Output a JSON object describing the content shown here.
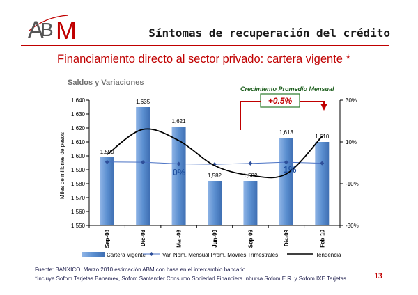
{
  "logo": {
    "text": "ABM"
  },
  "slide": {
    "title": "Síntomas de recuperación del crédito",
    "subtitle": "Financiamiento directo al sector privado: cartera vigente *",
    "page_number": "13"
  },
  "footnotes": [
    "Fuente:  BANXICO. Marzo 2010 estimación ABM con base en el intercambio bancario.",
    "*Incluye Sofom Tarjetas Banamex, Sofom Santander Consumo Sociedad Financiera Inbursa Sofom E.R. y Sofom IXE Tarjetas"
  ],
  "colors": {
    "accent": "#c00000",
    "bar": "#5b8fd0",
    "line": "#4a72c4",
    "trend": "#000000"
  },
  "chart_data": {
    "type": "bar",
    "heading": "Saldos y Variaciones",
    "categories": [
      "Sep-08",
      "Dic-08",
      "Mar-09",
      "Jun-09",
      "Sep-09",
      "Dic-09",
      "Feb-10"
    ],
    "ylabel": "Miles de millones de pesos",
    "ylim": [
      1550,
      1640
    ],
    "yticks": [
      "1,550",
      "1,560",
      "1,570",
      "1,580",
      "1,590",
      "1,600",
      "1,610",
      "1,620",
      "1,630",
      "1,640"
    ],
    "y2lim": [
      -30,
      30
    ],
    "y2ticks": [
      "30%",
      "10%",
      "-10%",
      "-30%"
    ],
    "series": [
      {
        "name": "Cartera Vigente",
        "type": "bar",
        "values": [
          1599,
          1635,
          1621,
          1582,
          1582,
          1613,
          1610
        ],
        "labels": [
          "1,599",
          "1,635",
          "1,621",
          "1,582",
          "1,582",
          "1,613",
          "1,610"
        ]
      },
      {
        "name": "Var. Nom. Mensual Prom. Móviles Trimestrales",
        "type": "line",
        "axis": "right",
        "values": [
          0.4,
          0.3,
          -0.5,
          -0.7,
          -0.3,
          0.3,
          -0.2
        ]
      },
      {
        "name": "Tendencia",
        "type": "line",
        "axis": "left",
        "values": [
          1601,
          1619,
          1611,
          1593,
          1586,
          1587,
          1614
        ]
      }
    ],
    "annotations": {
      "growth_title": "Crecimiento Promedio Mensual",
      "growth_value": "+0.5%",
      "label_zero": "0%",
      "label_one": "1%"
    },
    "grid": false,
    "legend": "bottom"
  }
}
